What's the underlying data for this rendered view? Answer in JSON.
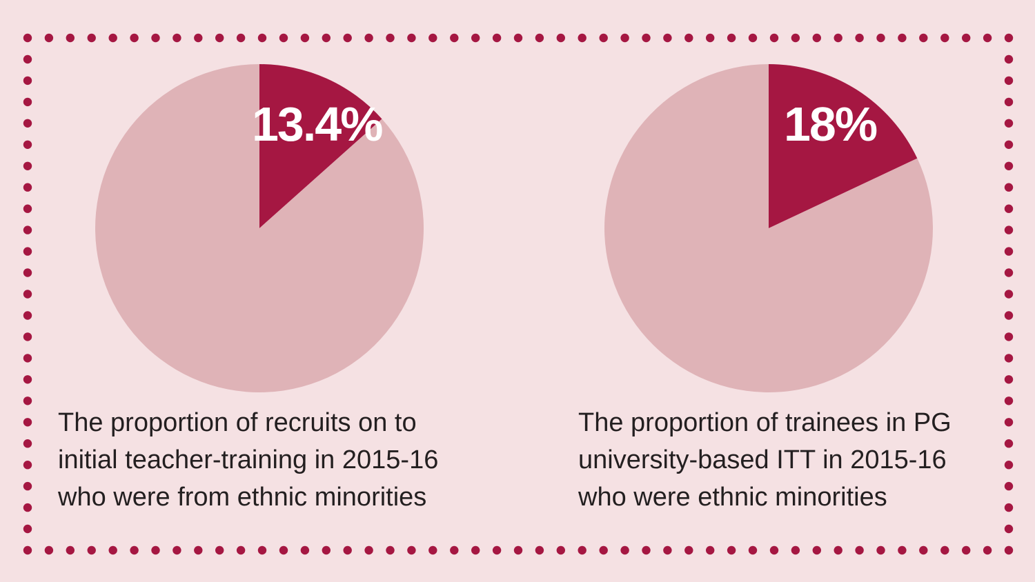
{
  "colors": {
    "background": "#f5e1e3",
    "accent": "#a51742",
    "remainder": "#dfb3b7",
    "text": "#231f20",
    "label": "#ffffff"
  },
  "chart_data": [
    {
      "type": "pie",
      "values": [
        13.4,
        86.6
      ],
      "highlight_label": "13.4%",
      "caption_lines": [
        "The proportion of recruits on to",
        "initial teacher-training in 2015-16",
        "who were from ethnic minorities"
      ]
    },
    {
      "type": "pie",
      "values": [
        18,
        82
      ],
      "highlight_label": "18%",
      "caption_lines": [
        "The proportion of trainees in PG",
        "university-based ITT in 2015-16",
        "who were ethnic minorities"
      ]
    }
  ]
}
